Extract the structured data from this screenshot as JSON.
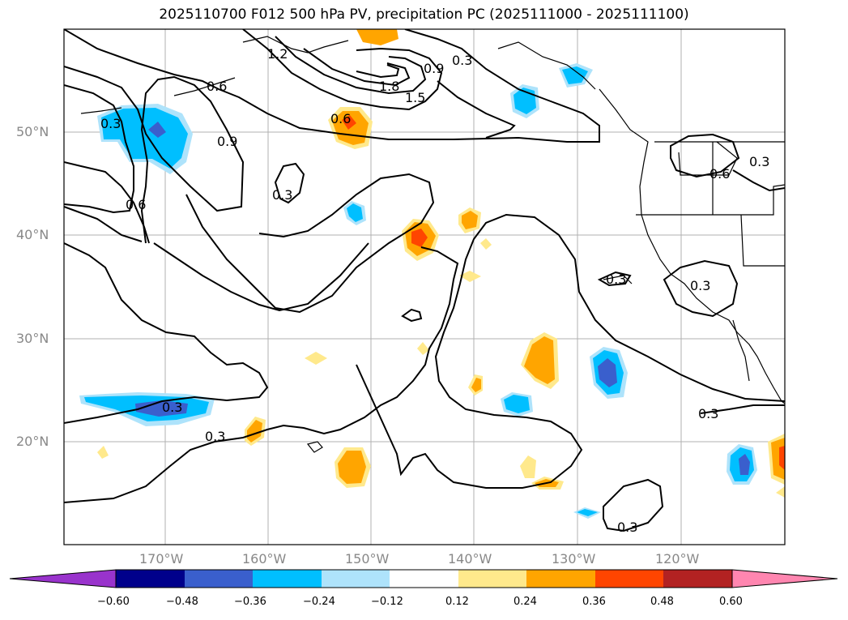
{
  "title": "2025110700 F012 500 hPa PV, precipitation PC (2025111000 - 2025111100)",
  "lat_labels": [
    "50°N",
    "40°N",
    "30°N",
    "20°N"
  ],
  "lon_labels": [
    "170°W",
    "160°W",
    "150°W",
    "140°W",
    "130°W",
    "120°W"
  ],
  "contour_labels": [
    "0.3",
    "0.6",
    "0.9",
    "1.2",
    "1.5",
    "1.8"
  ],
  "colorbar": {
    "ticks": [
      "−0.60",
      "−0.48",
      "−0.36",
      "−0.24",
      "−0.12",
      "0.12",
      "0.24",
      "0.36",
      "0.48",
      "0.60"
    ],
    "colors": [
      "#9933cc",
      "#00008b",
      "#3a5fcd",
      "#00bfff",
      "#aee3fb",
      "#ffffff",
      "#ffe98c",
      "#ffa500",
      "#ff4500",
      "#b22222",
      "#ff86b0"
    ]
  }
}
